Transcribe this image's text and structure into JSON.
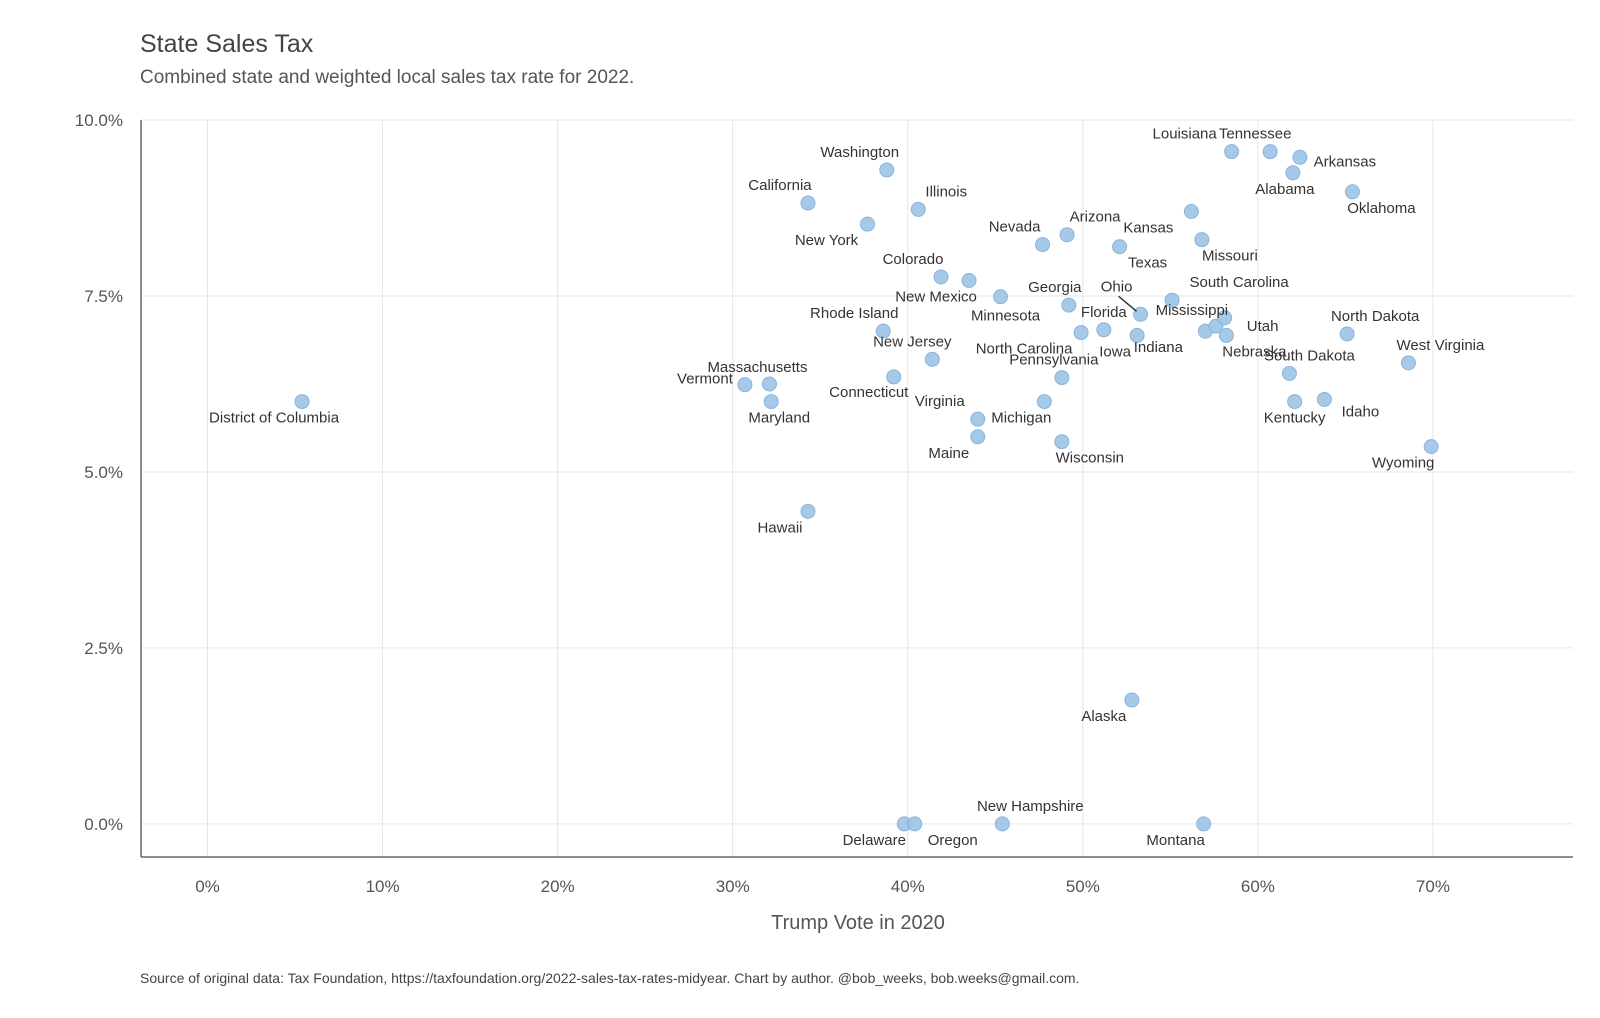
{
  "chart_data": {
    "type": "scatter",
    "title": "State Sales Tax",
    "subtitle": "Combined state and weighted local sales tax rate for 2022.",
    "xlabel": "Trump Vote in 2020",
    "ylabel": "",
    "caption": "Source of original data: Tax Foundation, https://taxfoundation.org/2022-sales-tax-rates-midyear. Chart by author. @bob_weeks, bob.weeks@gmail.com.",
    "xlim": [
      -3.8,
      78
    ],
    "ylim": [
      -0.47,
      10.0
    ],
    "xticks": [
      "0%",
      "10%",
      "20%",
      "30%",
      "40%",
      "50%",
      "60%",
      "70%"
    ],
    "yticks": [
      "0.0%",
      "2.5%",
      "5.0%",
      "7.5%",
      "10.0%"
    ],
    "grid": true,
    "point_color": "#9dc3e6",
    "points": [
      {
        "label": "District of Columbia",
        "x": 5.4,
        "y": 6.0
      },
      {
        "label": "Hawaii",
        "x": 34.3,
        "y": 4.44
      },
      {
        "label": "Vermont",
        "x": 30.7,
        "y": 6.24
      },
      {
        "label": "Massachusetts",
        "x": 32.1,
        "y": 6.25
      },
      {
        "label": "Maryland",
        "x": 32.2,
        "y": 6.0
      },
      {
        "label": "California",
        "x": 34.3,
        "y": 8.82
      },
      {
        "label": "New York",
        "x": 37.7,
        "y": 8.52
      },
      {
        "label": "Washington",
        "x": 38.8,
        "y": 9.29
      },
      {
        "label": "Rhode Island",
        "x": 38.6,
        "y": 7.0
      },
      {
        "label": "Connecticut",
        "x": 39.2,
        "y": 6.35
      },
      {
        "label": "Delaware",
        "x": 39.8,
        "y": 0.0
      },
      {
        "label": "Oregon",
        "x": 40.4,
        "y": 0.0
      },
      {
        "label": "Illinois",
        "x": 40.6,
        "y": 8.73
      },
      {
        "label": "New Jersey",
        "x": 41.4,
        "y": 6.6
      },
      {
        "label": "Colorado",
        "x": 41.9,
        "y": 7.77
      },
      {
        "label": "New Mexico",
        "x": 43.5,
        "y": 7.72
      },
      {
        "label": "Maine",
        "x": 44.0,
        "y": 5.5
      },
      {
        "label": "Virginia",
        "x": 44.0,
        "y": 5.75
      },
      {
        "label": "Minnesota",
        "x": 45.3,
        "y": 7.49
      },
      {
        "label": "New Hampshire",
        "x": 45.4,
        "y": 0.0
      },
      {
        "label": "Michigan",
        "x": 47.8,
        "y": 6.0
      },
      {
        "label": "Nevada",
        "x": 47.7,
        "y": 8.23
      },
      {
        "label": "Pennsylvania",
        "x": 48.8,
        "y": 6.34
      },
      {
        "label": "Wisconsin",
        "x": 48.8,
        "y": 5.43
      },
      {
        "label": "Arizona",
        "x": 49.1,
        "y": 8.37
      },
      {
        "label": "Georgia",
        "x": 49.2,
        "y": 7.37
      },
      {
        "label": "North Carolina",
        "x": 49.9,
        "y": 6.98
      },
      {
        "label": "Florida",
        "x": 51.2,
        "y": 7.02
      },
      {
        "label": "Texas",
        "x": 52.1,
        "y": 8.2
      },
      {
        "label": "Alaska",
        "x": 52.8,
        "y": 1.76
      },
      {
        "label": "Iowa",
        "x": 53.1,
        "y": 6.94
      },
      {
        "label": "Ohio",
        "x": 53.3,
        "y": 7.24
      },
      {
        "label": "South Carolina",
        "x": 55.1,
        "y": 7.44
      },
      {
        "label": "Kansas",
        "x": 56.2,
        "y": 8.7
      },
      {
        "label": "Missouri",
        "x": 56.8,
        "y": 8.3
      },
      {
        "label": "Indiana",
        "x": 57.0,
        "y": 7.0
      },
      {
        "label": "Mississippi",
        "x": 57.6,
        "y": 7.07
      },
      {
        "label": "Montana",
        "x": 56.9,
        "y": 0.0
      },
      {
        "label": "Utah",
        "x": 58.1,
        "y": 7.19
      },
      {
        "label": "Louisiana",
        "x": 58.5,
        "y": 9.55
      },
      {
        "label": "Nebraska",
        "x": 58.2,
        "y": 6.94
      },
      {
        "label": "Tennessee",
        "x": 60.7,
        "y": 9.55
      },
      {
        "label": "South Dakota",
        "x": 61.8,
        "y": 6.4
      },
      {
        "label": "Alabama",
        "x": 62.0,
        "y": 9.25
      },
      {
        "label": "Kentucky",
        "x": 62.1,
        "y": 6.0
      },
      {
        "label": "Arkansas",
        "x": 62.4,
        "y": 9.47
      },
      {
        "label": "Idaho",
        "x": 63.8,
        "y": 6.03
      },
      {
        "label": "North Dakota",
        "x": 65.1,
        "y": 6.96
      },
      {
        "label": "Oklahoma",
        "x": 65.4,
        "y": 8.98
      },
      {
        "label": "West Virginia",
        "x": 68.6,
        "y": 6.55
      },
      {
        "label": "Wyoming",
        "x": 69.9,
        "y": 5.36
      }
    ]
  }
}
